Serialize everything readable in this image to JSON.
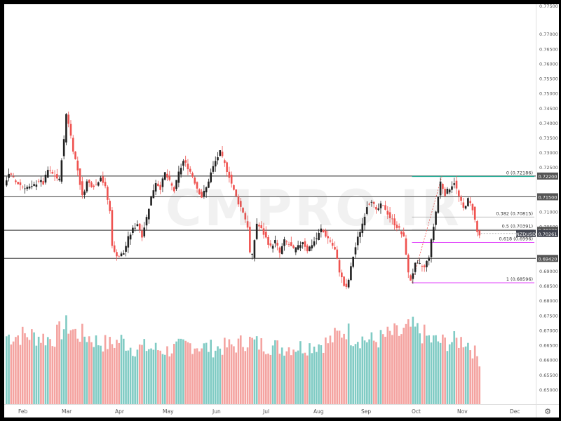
{
  "watermark": "CMPRO.IR",
  "symbol_label": "NZDUSD",
  "settings_icon": "gear-icon",
  "colors": {
    "up": "#26a69a",
    "down": "#ef5350",
    "up_volume": "#80cbc4",
    "down_volume": "#f4a3a0",
    "level_line": "#555555",
    "fib_top": "#22ab94",
    "fib_mid": "#bdbdbd",
    "fib_618": "#e040fb",
    "fib_bottom": "#e040fb",
    "current_price_bg": "#434651"
  },
  "chart_data": {
    "type": "candlestick",
    "title": "",
    "ylim": [
      0.645,
      0.78
    ],
    "y_ticks": [
      "0.77000",
      "0.76500",
      "0.76000",
      "0.75500",
      "0.75000",
      "0.74500",
      "0.74000",
      "0.73500",
      "0.73000",
      "0.72500",
      "0.71500",
      "0.71000",
      "0.70500",
      "0.69500",
      "0.69000",
      "0.68500",
      "0.68000",
      "0.67500",
      "0.67000",
      "0.66500",
      "0.66000",
      "0.65500",
      "0.65000"
    ],
    "y_tick_top_partial": "0.77500",
    "x_ticks": [
      "Feb",
      "Mar",
      "Apr",
      "May",
      "Jun",
      "Jul",
      "Aug",
      "Sep",
      "Oct",
      "Nov",
      "Dec"
    ],
    "horizontal_levels": [
      {
        "price": 0.722,
        "label": "0.72200"
      },
      {
        "price": 0.715,
        "label": "0.71500"
      },
      {
        "price": 0.7037,
        "label": "0.70370"
      },
      {
        "price": 0.6942,
        "label": "0.69420"
      }
    ],
    "current_price": {
      "price": 0.70261,
      "label": "0.70261",
      "symbol": "NZDUSD"
    },
    "fibonacci": [
      {
        "ratio_label": "0 (0.72186)",
        "price": 0.72186
      },
      {
        "ratio_label": "0.382 (0.70815)",
        "price": 0.70815
      },
      {
        "ratio_label": "0.5 (0.70391)",
        "price": 0.70391
      },
      {
        "ratio_label": "0.618 (0.6996)",
        "price": 0.6996
      },
      {
        "ratio_label": "1 (0.68596)",
        "price": 0.68596
      }
    ],
    "series_path": [
      [
        0,
        0.719
      ],
      [
        2,
        0.723
      ],
      [
        5,
        0.72
      ],
      [
        8,
        0.7185
      ],
      [
        12,
        0.718
      ],
      [
        15,
        0.7205
      ],
      [
        17,
        0.7195
      ],
      [
        19,
        0.724
      ],
      [
        22,
        0.722
      ],
      [
        24,
        0.7205
      ],
      [
        25,
        0.728
      ],
      [
        26,
        0.734
      ],
      [
        27,
        0.743
      ],
      [
        28,
        0.74
      ],
      [
        30,
        0.731
      ],
      [
        32,
        0.724
      ],
      [
        34,
        0.715
      ],
      [
        36,
        0.72
      ],
      [
        38,
        0.719
      ],
      [
        40,
        0.719
      ],
      [
        42,
        0.722
      ],
      [
        44,
        0.718
      ],
      [
        46,
        0.71
      ],
      [
        47,
        0.699
      ],
      [
        48,
        0.696
      ],
      [
        50,
        0.695
      ],
      [
        52,
        0.696
      ],
      [
        54,
        0.701
      ],
      [
        56,
        0.704
      ],
      [
        58,
        0.706
      ],
      [
        60,
        0.702
      ],
      [
        62,
        0.708
      ],
      [
        64,
        0.715
      ],
      [
        66,
        0.72
      ],
      [
        68,
        0.718
      ],
      [
        70,
        0.723
      ],
      [
        72,
        0.72
      ],
      [
        74,
        0.717
      ],
      [
        76,
        0.723
      ],
      [
        78,
        0.727
      ],
      [
        80,
        0.725
      ],
      [
        82,
        0.722
      ],
      [
        84,
        0.718
      ],
      [
        86,
        0.715
      ],
      [
        88,
        0.718
      ],
      [
        90,
        0.723
      ],
      [
        92,
        0.727
      ],
      [
        94,
        0.73
      ],
      [
        96,
        0.726
      ],
      [
        98,
        0.722
      ],
      [
        100,
        0.717
      ],
      [
        102,
        0.713
      ],
      [
        104,
        0.71
      ],
      [
        106,
        0.705
      ],
      [
        107,
        0.696
      ],
      [
        108,
        0.695
      ],
      [
        110,
        0.706
      ],
      [
        112,
        0.704
      ],
      [
        114,
        0.701
      ],
      [
        116,
        0.698
      ],
      [
        118,
        0.7
      ],
      [
        120,
        0.696
      ],
      [
        122,
        0.7
      ],
      [
        124,
        0.699
      ],
      [
        126,
        0.697
      ],
      [
        128,
        0.698
      ],
      [
        130,
        0.7
      ],
      [
        132,
        0.697
      ],
      [
        134,
        0.699
      ],
      [
        136,
        0.701
      ],
      [
        138,
        0.704
      ],
      [
        140,
        0.702
      ],
      [
        142,
        0.7
      ],
      [
        144,
        0.697
      ],
      [
        146,
        0.69
      ],
      [
        148,
        0.685
      ],
      [
        149,
        0.684
      ],
      [
        150,
        0.687
      ],
      [
        152,
        0.695
      ],
      [
        154,
        0.701
      ],
      [
        156,
        0.706
      ],
      [
        158,
        0.712
      ],
      [
        160,
        0.714
      ],
      [
        162,
        0.71
      ],
      [
        164,
        0.712
      ],
      [
        166,
        0.711
      ],
      [
        168,
        0.708
      ],
      [
        170,
        0.706
      ],
      [
        172,
        0.704
      ],
      [
        174,
        0.701
      ],
      [
        175,
        0.696
      ],
      [
        176,
        0.689
      ],
      [
        177,
        0.687
      ],
      [
        179,
        0.692
      ],
      [
        181,
        0.692
      ],
      [
        183,
        0.691
      ],
      [
        185,
        0.695
      ],
      [
        187,
        0.705
      ],
      [
        189,
        0.715
      ],
      [
        190,
        0.72
      ],
      [
        192,
        0.716
      ],
      [
        194,
        0.718
      ],
      [
        196,
        0.72
      ],
      [
        198,
        0.715
      ],
      [
        200,
        0.711
      ],
      [
        202,
        0.714
      ],
      [
        204,
        0.711
      ],
      [
        206,
        0.703
      ],
      [
        207,
        0.702
      ]
    ],
    "volume_bars": 207,
    "volume_path": [
      [
        0,
        0.66
      ],
      [
        10,
        0.67
      ],
      [
        20,
        0.63
      ],
      [
        25,
        0.74
      ],
      [
        27,
        0.76
      ],
      [
        30,
        0.69
      ],
      [
        35,
        0.66
      ],
      [
        40,
        0.6
      ],
      [
        45,
        0.58
      ],
      [
        50,
        0.62
      ],
      [
        55,
        0.54
      ],
      [
        60,
        0.55
      ],
      [
        70,
        0.52
      ],
      [
        80,
        0.58
      ],
      [
        90,
        0.54
      ],
      [
        100,
        0.57
      ],
      [
        105,
        0.62
      ],
      [
        110,
        0.58
      ],
      [
        120,
        0.55
      ],
      [
        130,
        0.56
      ],
      [
        140,
        0.6
      ],
      [
        148,
        0.73
      ],
      [
        150,
        0.66
      ],
      [
        160,
        0.61
      ],
      [
        168,
        0.68
      ],
      [
        172,
        0.68
      ],
      [
        176,
        0.74
      ],
      [
        180,
        0.7
      ],
      [
        185,
        0.62
      ],
      [
        190,
        0.6
      ],
      [
        200,
        0.62
      ],
      [
        207,
        0.4
      ]
    ]
  }
}
